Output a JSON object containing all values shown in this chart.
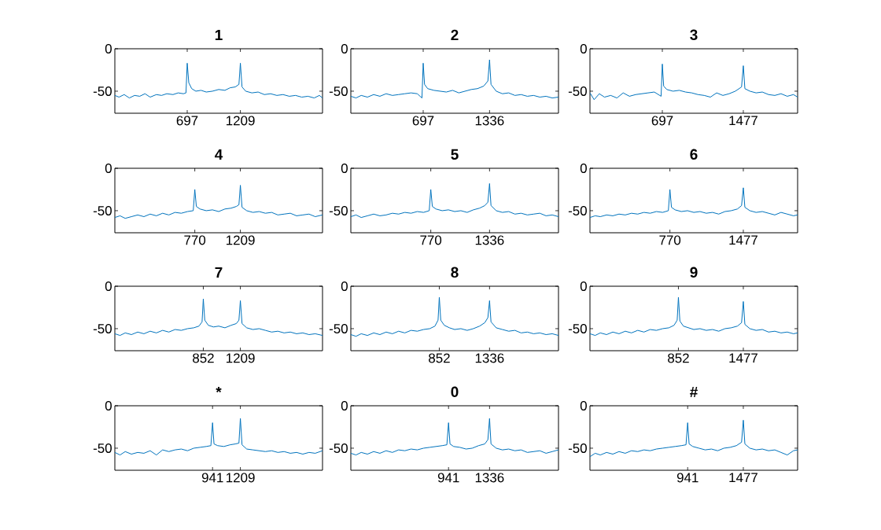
{
  "chart_data": [
    {
      "type": "line",
      "title": "1",
      "color": "#0072bd",
      "xlim": [
        0,
        2000
      ],
      "ylim": [
        -76,
        0
      ],
      "xticks": [
        697,
        1209
      ],
      "yticks": [
        -50,
        0
      ],
      "x": [
        0,
        40,
        90,
        140,
        190,
        240,
        290,
        340,
        400,
        450,
        500,
        560,
        610,
        660,
        685,
        697,
        712,
        740,
        780,
        830,
        880,
        940,
        1000,
        1060,
        1110,
        1160,
        1195,
        1209,
        1225,
        1260,
        1320,
        1380,
        1440,
        1500,
        1560,
        1620,
        1680,
        1740,
        1800,
        1860,
        1920,
        1970,
        2000
      ],
      "values": [
        -55,
        -57,
        -54,
        -58,
        -55,
        -56,
        -53,
        -57,
        -54,
        -55,
        -53,
        -54,
        -52,
        -53,
        -52,
        -17,
        -40,
        -47,
        -50,
        -49,
        -51,
        -50,
        -48,
        -49,
        -46,
        -45,
        -42,
        -17,
        -45,
        -50,
        -52,
        -51,
        -54,
        -53,
        -55,
        -54,
        -56,
        -55,
        -57,
        -56,
        -58,
        -55,
        -58
      ]
    },
    {
      "type": "line",
      "title": "2",
      "color": "#0072bd",
      "xlim": [
        0,
        2000
      ],
      "ylim": [
        -76,
        0
      ],
      "xticks": [
        697,
        1336
      ],
      "yticks": [
        -50,
        0
      ],
      "x": [
        0,
        50,
        100,
        160,
        220,
        280,
        340,
        400,
        460,
        520,
        580,
        640,
        685,
        697,
        710,
        740,
        800,
        860,
        920,
        980,
        1040,
        1100,
        1160,
        1220,
        1280,
        1320,
        1336,
        1350,
        1400,
        1460,
        1520,
        1580,
        1640,
        1700,
        1760,
        1820,
        1880,
        1940,
        2000
      ],
      "values": [
        -56,
        -58,
        -55,
        -57,
        -54,
        -56,
        -53,
        -55,
        -54,
        -53,
        -52,
        -53,
        -58,
        -17,
        -42,
        -47,
        -49,
        -50,
        -51,
        -49,
        -52,
        -50,
        -48,
        -47,
        -44,
        -38,
        -13,
        -42,
        -50,
        -53,
        -52,
        -55,
        -54,
        -56,
        -55,
        -57,
        -56,
        -58,
        -57
      ]
    },
    {
      "type": "line",
      "title": "3",
      "color": "#0072bd",
      "xlim": [
        0,
        2000
      ],
      "ylim": [
        -76,
        0
      ],
      "xticks": [
        697,
        1477
      ],
      "yticks": [
        -50,
        0
      ],
      "x": [
        0,
        40,
        90,
        140,
        200,
        260,
        320,
        380,
        440,
        500,
        560,
        620,
        685,
        697,
        710,
        740,
        800,
        860,
        920,
        980,
        1040,
        1100,
        1160,
        1220,
        1280,
        1340,
        1400,
        1460,
        1477,
        1492,
        1540,
        1600,
        1660,
        1720,
        1780,
        1840,
        1900,
        1960,
        2000
      ],
      "values": [
        -52,
        -60,
        -53,
        -57,
        -55,
        -58,
        -52,
        -56,
        -54,
        -53,
        -52,
        -51,
        -56,
        -18,
        -44,
        -48,
        -50,
        -49,
        -51,
        -52,
        -54,
        -55,
        -57,
        -52,
        -55,
        -53,
        -50,
        -45,
        -20,
        -47,
        -50,
        -52,
        -51,
        -54,
        -55,
        -53,
        -56,
        -54,
        -57
      ]
    },
    {
      "type": "line",
      "title": "4",
      "color": "#0072bd",
      "xlim": [
        0,
        2000
      ],
      "ylim": [
        -76,
        0
      ],
      "xticks": [
        770,
        1209
      ],
      "yticks": [
        -50,
        0
      ],
      "x": [
        0,
        50,
        100,
        160,
        220,
        280,
        340,
        400,
        460,
        520,
        580,
        640,
        700,
        755,
        770,
        785,
        820,
        880,
        940,
        1000,
        1060,
        1120,
        1170,
        1195,
        1209,
        1225,
        1270,
        1330,
        1390,
        1450,
        1510,
        1570,
        1630,
        1690,
        1750,
        1810,
        1870,
        1930,
        2000
      ],
      "values": [
        -58,
        -56,
        -59,
        -57,
        -55,
        -57,
        -54,
        -56,
        -53,
        -55,
        -52,
        -53,
        -51,
        -50,
        -25,
        -45,
        -48,
        -50,
        -49,
        -51,
        -48,
        -47,
        -45,
        -43,
        -20,
        -46,
        -50,
        -52,
        -51,
        -53,
        -52,
        -55,
        -54,
        -53,
        -56,
        -55,
        -54,
        -57,
        -55
      ]
    },
    {
      "type": "line",
      "title": "5",
      "color": "#0072bd",
      "xlim": [
        0,
        2000
      ],
      "ylim": [
        -76,
        0
      ],
      "xticks": [
        770,
        1336
      ],
      "yticks": [
        -50,
        0
      ],
      "x": [
        0,
        50,
        100,
        160,
        220,
        280,
        340,
        400,
        460,
        520,
        580,
        640,
        700,
        755,
        770,
        785,
        820,
        880,
        940,
        1000,
        1060,
        1120,
        1180,
        1240,
        1290,
        1320,
        1336,
        1350,
        1400,
        1460,
        1520,
        1580,
        1640,
        1700,
        1760,
        1820,
        1880,
        1940,
        2000
      ],
      "values": [
        -57,
        -55,
        -58,
        -56,
        -54,
        -56,
        -55,
        -53,
        -54,
        -52,
        -53,
        -51,
        -52,
        -50,
        -25,
        -45,
        -48,
        -50,
        -49,
        -51,
        -50,
        -52,
        -49,
        -47,
        -44,
        -40,
        -18,
        -44,
        -50,
        -52,
        -51,
        -54,
        -53,
        -55,
        -54,
        -53,
        -56,
        -55,
        -57
      ]
    },
    {
      "type": "line",
      "title": "6",
      "color": "#0072bd",
      "xlim": [
        0,
        2000
      ],
      "ylim": [
        -76,
        0
      ],
      "xticks": [
        770,
        1477
      ],
      "yticks": [
        -50,
        0
      ],
      "x": [
        0,
        50,
        100,
        160,
        220,
        280,
        340,
        400,
        460,
        520,
        580,
        640,
        700,
        755,
        770,
        785,
        820,
        880,
        940,
        1000,
        1060,
        1120,
        1180,
        1240,
        1300,
        1360,
        1420,
        1460,
        1477,
        1492,
        1540,
        1600,
        1660,
        1720,
        1780,
        1840,
        1900,
        1960,
        2000
      ],
      "values": [
        -58,
        -56,
        -57,
        -55,
        -56,
        -54,
        -55,
        -53,
        -54,
        -52,
        -53,
        -51,
        -52,
        -50,
        -25,
        -46,
        -49,
        -51,
        -50,
        -52,
        -51,
        -53,
        -52,
        -54,
        -51,
        -50,
        -48,
        -44,
        -23,
        -46,
        -50,
        -52,
        -51,
        -53,
        -55,
        -52,
        -54,
        -56,
        -55
      ]
    },
    {
      "type": "line",
      "title": "7",
      "color": "#0072bd",
      "xlim": [
        0,
        2000
      ],
      "ylim": [
        -76,
        0
      ],
      "xticks": [
        852,
        1209
      ],
      "yticks": [
        -50,
        0
      ],
      "x": [
        0,
        50,
        100,
        160,
        220,
        280,
        340,
        400,
        460,
        520,
        580,
        640,
        700,
        760,
        810,
        840,
        852,
        866,
        900,
        950,
        1000,
        1060,
        1120,
        1170,
        1195,
        1209,
        1225,
        1270,
        1330,
        1390,
        1450,
        1510,
        1570,
        1630,
        1690,
        1750,
        1810,
        1870,
        1930,
        2000
      ],
      "values": [
        -56,
        -58,
        -55,
        -57,
        -54,
        -56,
        -53,
        -55,
        -52,
        -54,
        -51,
        -52,
        -50,
        -49,
        -47,
        -42,
        -15,
        -40,
        -46,
        -48,
        -47,
        -49,
        -46,
        -44,
        -40,
        -17,
        -44,
        -49,
        -51,
        -50,
        -52,
        -54,
        -53,
        -55,
        -54,
        -56,
        -55,
        -57,
        -56,
        -58
      ]
    },
    {
      "type": "line",
      "title": "8",
      "color": "#0072bd",
      "xlim": [
        0,
        2000
      ],
      "ylim": [
        -76,
        0
      ],
      "xticks": [
        852,
        1336
      ],
      "yticks": [
        -50,
        0
      ],
      "x": [
        0,
        50,
        100,
        160,
        220,
        280,
        340,
        400,
        460,
        520,
        580,
        640,
        700,
        760,
        810,
        840,
        852,
        866,
        900,
        950,
        1000,
        1060,
        1120,
        1180,
        1240,
        1290,
        1320,
        1336,
        1350,
        1400,
        1460,
        1520,
        1580,
        1640,
        1700,
        1760,
        1820,
        1880,
        1940,
        2000
      ],
      "values": [
        -57,
        -59,
        -56,
        -58,
        -55,
        -57,
        -54,
        -56,
        -53,
        -55,
        -52,
        -53,
        -51,
        -50,
        -47,
        -40,
        -13,
        -40,
        -46,
        -49,
        -51,
        -50,
        -52,
        -50,
        -47,
        -43,
        -37,
        -17,
        -42,
        -49,
        -51,
        -53,
        -52,
        -55,
        -54,
        -56,
        -55,
        -57,
        -56,
        -58
      ]
    },
    {
      "type": "line",
      "title": "9",
      "color": "#0072bd",
      "xlim": [
        0,
        2000
      ],
      "ylim": [
        -76,
        0
      ],
      "xticks": [
        852,
        1477
      ],
      "yticks": [
        -50,
        0
      ],
      "x": [
        0,
        50,
        100,
        160,
        220,
        280,
        340,
        400,
        460,
        520,
        580,
        640,
        700,
        760,
        810,
        840,
        852,
        866,
        900,
        950,
        1000,
        1060,
        1120,
        1180,
        1240,
        1300,
        1360,
        1420,
        1460,
        1477,
        1492,
        1540,
        1600,
        1660,
        1720,
        1780,
        1840,
        1900,
        1960,
        2000
      ],
      "values": [
        -56,
        -58,
        -55,
        -57,
        -54,
        -56,
        -53,
        -55,
        -52,
        -54,
        -51,
        -52,
        -50,
        -49,
        -46,
        -40,
        -13,
        -41,
        -47,
        -49,
        -51,
        -50,
        -52,
        -51,
        -53,
        -50,
        -49,
        -47,
        -43,
        -18,
        -45,
        -50,
        -52,
        -51,
        -54,
        -53,
        -55,
        -54,
        -56,
        -55
      ]
    },
    {
      "type": "line",
      "title": "*",
      "color": "#0072bd",
      "xlim": [
        0,
        2000
      ],
      "ylim": [
        -76,
        0
      ],
      "xticks": [
        941,
        1209
      ],
      "yticks": [
        -50,
        0
      ],
      "x": [
        0,
        50,
        100,
        160,
        220,
        280,
        340,
        400,
        460,
        520,
        580,
        640,
        700,
        760,
        820,
        880,
        925,
        941,
        955,
        990,
        1050,
        1110,
        1160,
        1195,
        1209,
        1225,
        1270,
        1330,
        1390,
        1450,
        1510,
        1570,
        1630,
        1690,
        1750,
        1810,
        1870,
        1930,
        2000
      ],
      "values": [
        -55,
        -58,
        -54,
        -57,
        -55,
        -56,
        -53,
        -58,
        -52,
        -54,
        -52,
        -51,
        -53,
        -50,
        -49,
        -48,
        -47,
        -20,
        -45,
        -47,
        -48,
        -46,
        -45,
        -44,
        -15,
        -46,
        -51,
        -52,
        -53,
        -54,
        -53,
        -55,
        -54,
        -56,
        -55,
        -57,
        -55,
        -56,
        -53
      ]
    },
    {
      "type": "line",
      "title": "0",
      "color": "#0072bd",
      "xlim": [
        0,
        2000
      ],
      "ylim": [
        -76,
        0
      ],
      "xticks": [
        941,
        1336
      ],
      "yticks": [
        -50,
        0
      ],
      "x": [
        0,
        50,
        100,
        160,
        220,
        280,
        340,
        400,
        460,
        520,
        580,
        640,
        700,
        760,
        820,
        880,
        925,
        941,
        955,
        990,
        1050,
        1110,
        1170,
        1230,
        1290,
        1320,
        1336,
        1350,
        1400,
        1460,
        1520,
        1580,
        1640,
        1700,
        1760,
        1820,
        1880,
        1940,
        2000
      ],
      "values": [
        -56,
        -58,
        -55,
        -57,
        -54,
        -56,
        -53,
        -55,
        -52,
        -53,
        -51,
        -52,
        -50,
        -49,
        -48,
        -47,
        -46,
        -20,
        -45,
        -48,
        -49,
        -51,
        -50,
        -47,
        -45,
        -40,
        -15,
        -45,
        -50,
        -52,
        -51,
        -53,
        -52,
        -55,
        -54,
        -53,
        -56,
        -54,
        -52
      ]
    },
    {
      "type": "line",
      "title": "#",
      "color": "#0072bd",
      "xlim": [
        0,
        2000
      ],
      "ylim": [
        -76,
        0
      ],
      "xticks": [
        941,
        1477
      ],
      "yticks": [
        -50,
        0
      ],
      "x": [
        0,
        50,
        100,
        160,
        220,
        280,
        340,
        400,
        460,
        520,
        580,
        640,
        700,
        760,
        820,
        880,
        925,
        941,
        955,
        990,
        1050,
        1110,
        1170,
        1230,
        1290,
        1350,
        1410,
        1460,
        1477,
        1492,
        1540,
        1600,
        1660,
        1720,
        1780,
        1840,
        1900,
        1960,
        2000
      ],
      "values": [
        -60,
        -56,
        -58,
        -55,
        -57,
        -54,
        -56,
        -53,
        -54,
        -52,
        -53,
        -51,
        -50,
        -49,
        -48,
        -47,
        -46,
        -20,
        -45,
        -48,
        -50,
        -52,
        -51,
        -53,
        -50,
        -49,
        -47,
        -43,
        -17,
        -45,
        -50,
        -52,
        -51,
        -53,
        -52,
        -55,
        -58,
        -53,
        -52
      ]
    }
  ]
}
